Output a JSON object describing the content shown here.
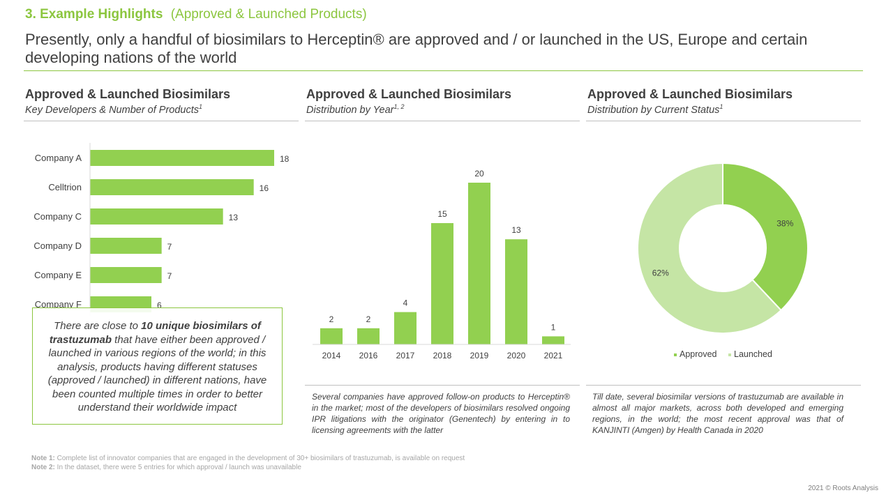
{
  "header": {
    "section_number": "3. Example Highlights",
    "section_sub": "(Approved & Launched Products)",
    "headline": "Presently, only a handful of biosimilars to Herceptin® are approved and / or launched in the US, Europe and certain developing nations of the world"
  },
  "panels": [
    {
      "title": "Approved & Launched Biosimilars",
      "subtitle": "Key Developers & Number of Products",
      "sup": "1"
    },
    {
      "title": "Approved & Launched Biosimilars",
      "subtitle": "Distribution by Year",
      "sup": "1, 2"
    },
    {
      "title": "Approved & Launched Biosimilars",
      "subtitle": "Distribution by Current Status",
      "sup": "1"
    }
  ],
  "callout": {
    "pre": "There are close to ",
    "bold": "10 unique biosimilars of trastuzumab",
    "post": " that have either been approved / launched in various regions of the world;  in this analysis, products having different statuses (approved / launched) in different nations, have been counted multiple times in order to better understand their worldwide  impact"
  },
  "notes": {
    "year": "Several companies have approved follow-on products to Herceptin® in the market; most of the developers of biosimilars resolved ongoing IPR litigations with the originator (Genentech) by entering in to licensing agreements with the latter",
    "status": "Till date, several biosimilar versions of trastuzumab are available in almost all major markets, across both developed and emerging regions, in the world;  the most recent approval was that of KANJINTI (Amgen) by Health Canada in 2020"
  },
  "footnotes": [
    {
      "label": "Note 1:",
      "text": " Complete  list of innovator companies that are engaged in the development of 30+ biosimilars  of trastuzumab, is available on request"
    },
    {
      "label": "Note 2:",
      "text": " In the dataset, there were 5 entries for which approval / launch was unavailable"
    }
  ],
  "copyright": "2021 © Roots Analysis",
  "colors": {
    "accent": "#8cc63f",
    "bar": "#92d050",
    "launched": "#c5e5a5",
    "text": "#404040"
  },
  "chart_data": [
    {
      "type": "bar",
      "orientation": "horizontal",
      "categories": [
        "Company A",
        "Celltrion",
        "Company C",
        "Company D",
        "Company E",
        "Company F"
      ],
      "values": [
        18,
        16,
        13,
        7,
        7,
        6
      ],
      "xlim": [
        0,
        18
      ]
    },
    {
      "type": "bar",
      "categories": [
        "2014",
        "2016",
        "2017",
        "2018",
        "2019",
        "2020",
        "2021"
      ],
      "values": [
        2,
        2,
        4,
        15,
        20,
        13,
        1
      ],
      "ylim": [
        0,
        20
      ]
    },
    {
      "type": "pie",
      "donut": true,
      "labels": [
        "Approved",
        "Launched"
      ],
      "values": [
        38,
        62
      ],
      "value_labels": [
        "38%",
        "62%"
      ],
      "legend": "bottom"
    }
  ]
}
